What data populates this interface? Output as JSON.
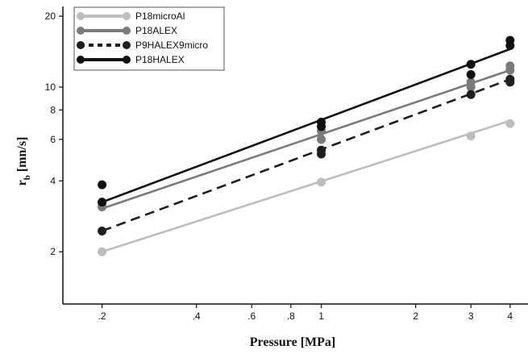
{
  "chart_data": {
    "type": "line",
    "xlabel": "Pressure [MPa]",
    "ylabel_main": "r",
    "ylabel_sub": "b",
    "ylabel_rest": " [mn/s]",
    "xscale": "log",
    "yscale": "log",
    "xlim": [
      0.15,
      4.3
    ],
    "ylim": [
      1.2,
      22
    ],
    "xticks": [
      {
        "v": 0.2,
        "label": ".2"
      },
      {
        "v": 0.4,
        "label": ".4"
      },
      {
        "v": 0.6,
        "label": ".6"
      },
      {
        "v": 0.8,
        "label": ".8"
      },
      {
        "v": 1,
        "label": "1"
      },
      {
        "v": 2,
        "label": "2"
      },
      {
        "v": 3,
        "label": "3"
      },
      {
        "v": 4,
        "label": "4"
      }
    ],
    "yticks": [
      {
        "v": 2,
        "label": "2"
      },
      {
        "v": 4,
        "label": "4"
      },
      {
        "v": 6,
        "label": "6"
      },
      {
        "v": 8,
        "label": "8"
      },
      {
        "v": 10,
        "label": "10"
      },
      {
        "v": 20,
        "label": "20"
      }
    ],
    "legend_position": "top-left",
    "series": [
      {
        "name": "P18microAl",
        "color": "#bdbdbd",
        "dash": "solid",
        "points": [
          [
            0.2,
            2.0
          ],
          [
            1.0,
            3.95
          ],
          [
            3.0,
            6.2
          ],
          [
            4.0,
            7.0
          ]
        ],
        "fit": [
          [
            0.2,
            2.0
          ],
          [
            4.0,
            7.2
          ]
        ]
      },
      {
        "name": "P18ALEX",
        "color": "#7a7a7a",
        "dash": "solid",
        "points": [
          [
            0.2,
            3.1
          ],
          [
            0.2,
            3.2
          ],
          [
            1.0,
            6.0
          ],
          [
            1.0,
            6.5
          ],
          [
            3.0,
            10.5
          ],
          [
            3.0,
            10.0
          ],
          [
            4.0,
            12.3
          ],
          [
            4.0,
            11.8
          ]
        ],
        "fit": [
          [
            0.2,
            3.05
          ],
          [
            4.0,
            11.8
          ]
        ]
      },
      {
        "name": "P9HALEX9micro",
        "color": "#1e1e1e",
        "dash": "dashed",
        "points": [
          [
            0.2,
            2.45
          ],
          [
            1.0,
            5.2
          ],
          [
            1.0,
            5.4
          ],
          [
            3.0,
            9.3
          ],
          [
            4.0,
            10.5
          ],
          [
            4.0,
            10.8
          ]
        ],
        "fit": [
          [
            0.2,
            2.45
          ],
          [
            4.0,
            10.8
          ]
        ]
      },
      {
        "name": "P18HALEX",
        "color": "#101010",
        "dash": "solid",
        "points": [
          [
            0.2,
            3.85
          ],
          [
            0.2,
            3.25
          ],
          [
            1.0,
            6.8
          ],
          [
            1.0,
            7.1
          ],
          [
            3.0,
            12.5
          ],
          [
            3.0,
            11.3
          ],
          [
            4.0,
            15.0
          ],
          [
            4.0,
            15.8
          ]
        ],
        "fit": [
          [
            0.2,
            3.25
          ],
          [
            4.0,
            14.5
          ]
        ]
      }
    ]
  }
}
